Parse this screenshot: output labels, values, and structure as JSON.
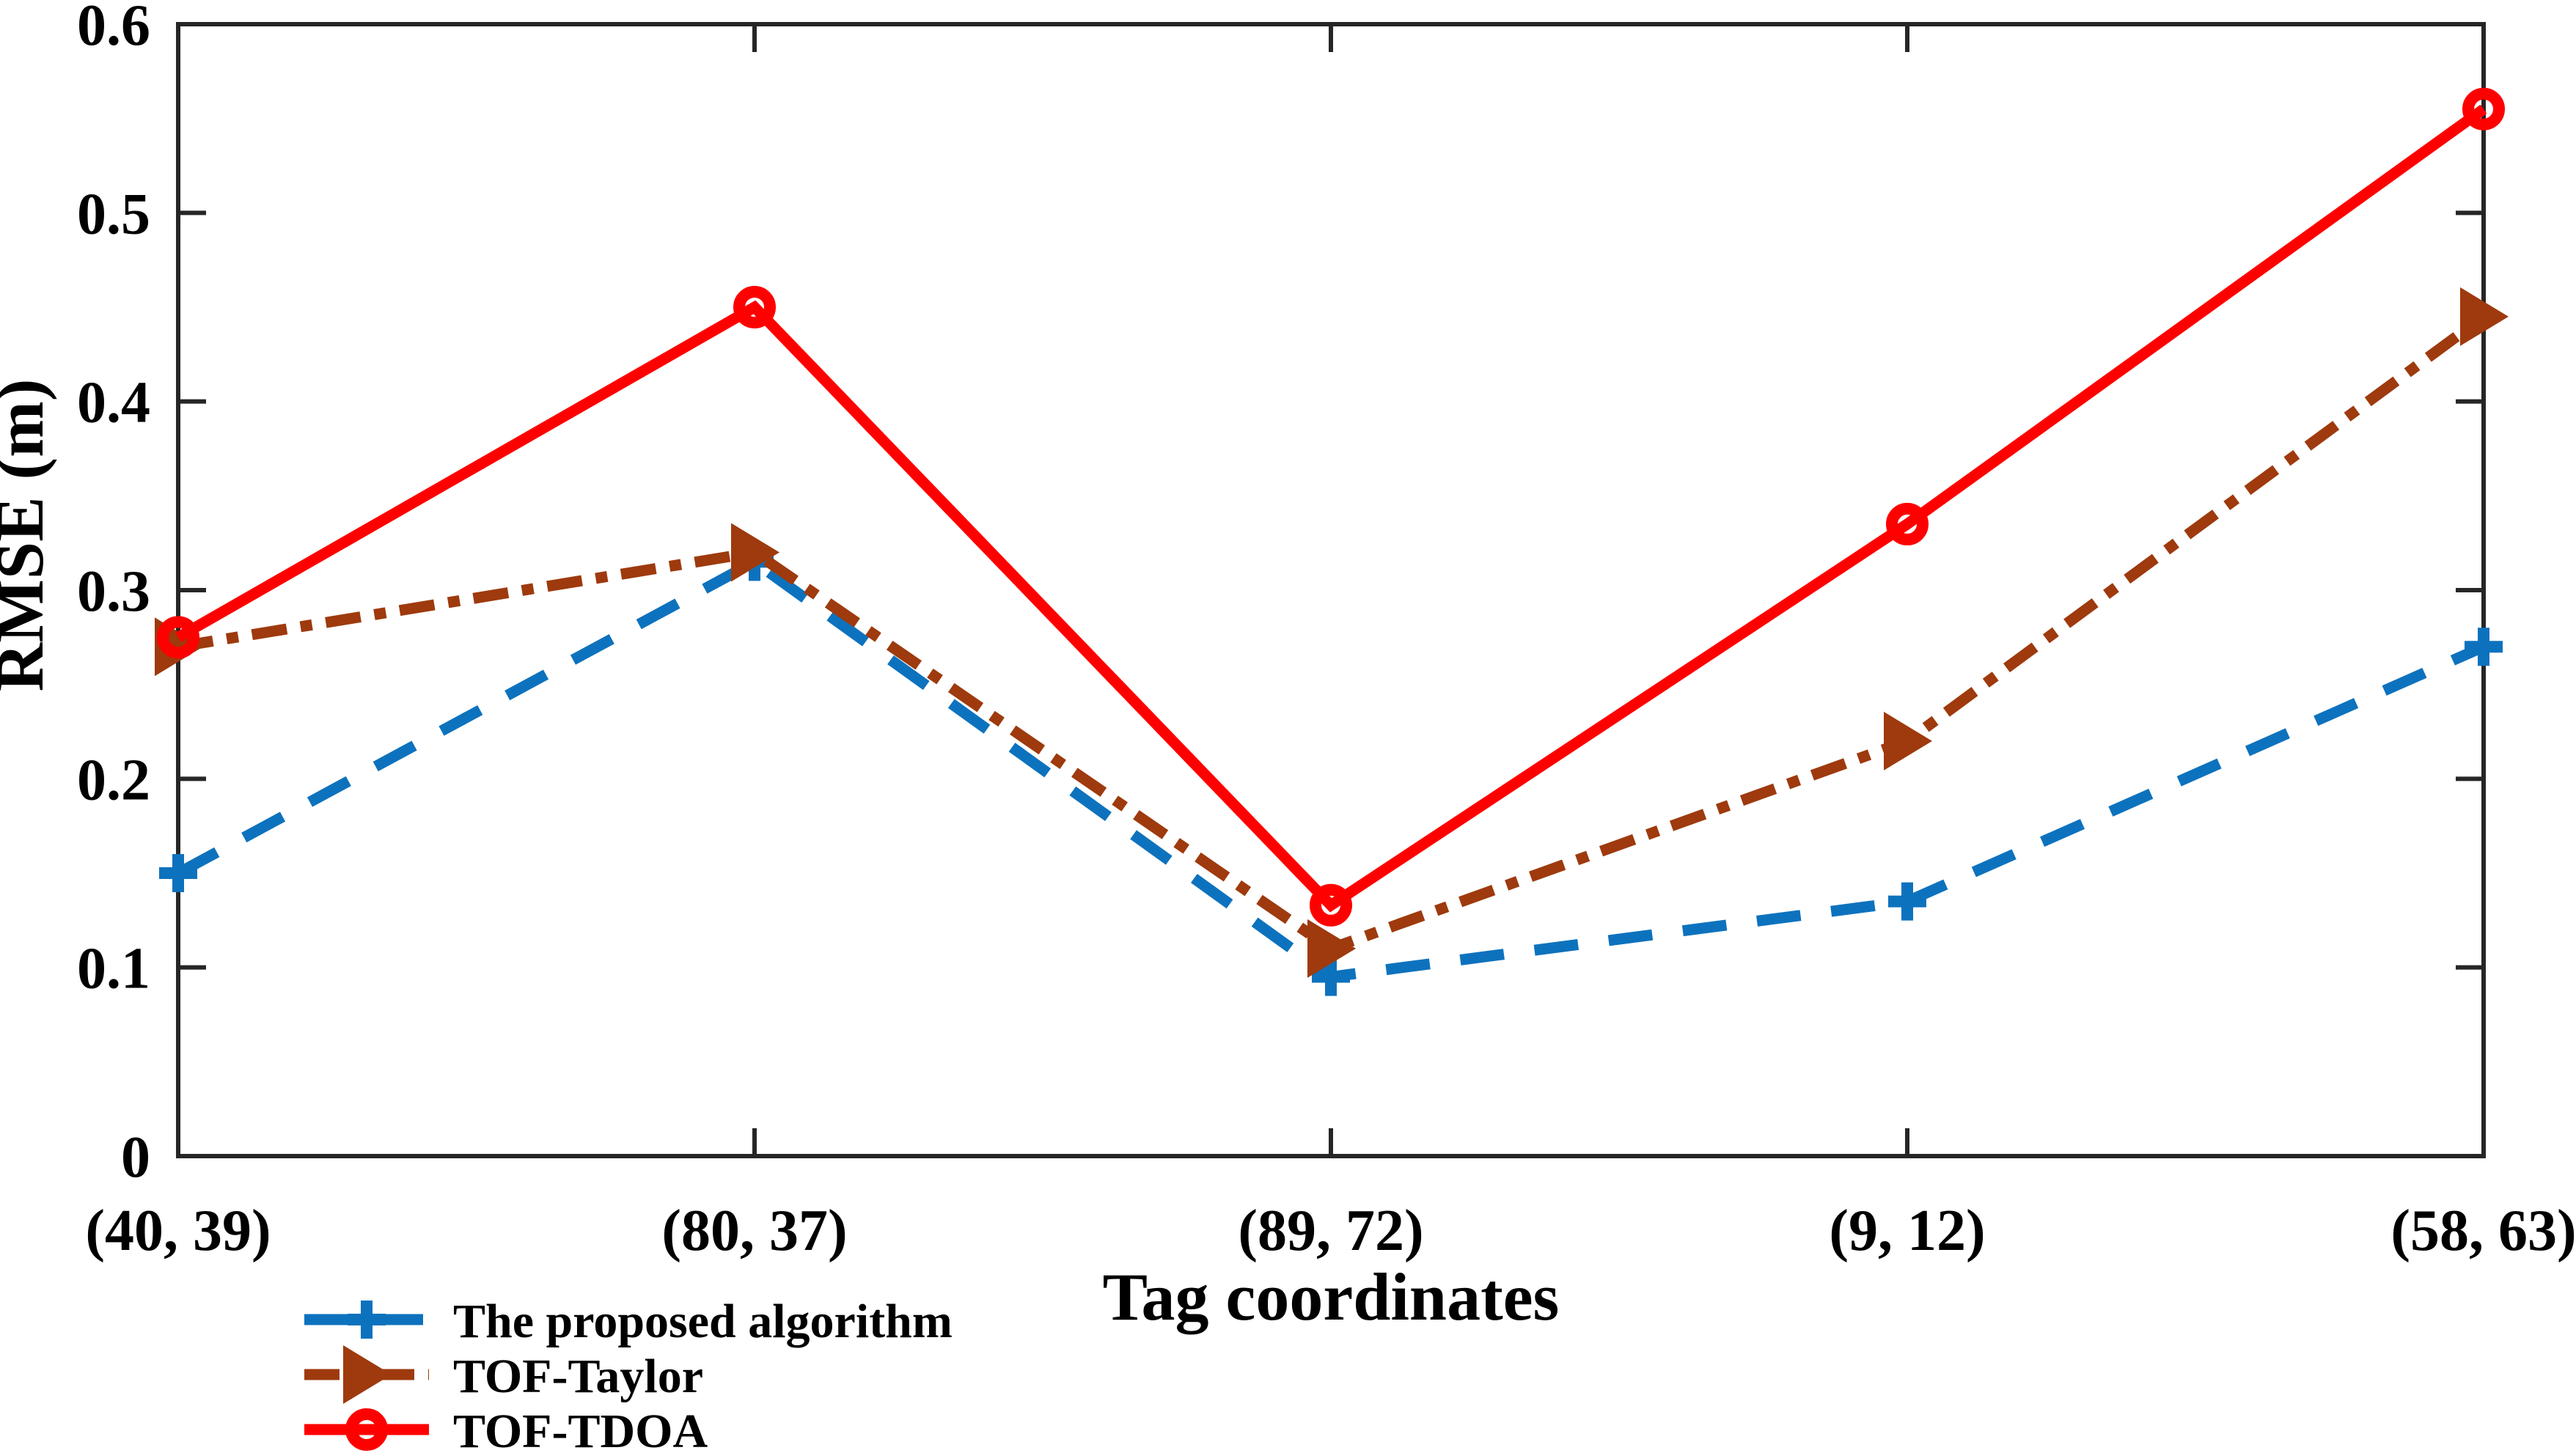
{
  "figure": {
    "background": "#ffffff",
    "axis_color": "#262626",
    "text_color": "#000000"
  },
  "chart_data": {
    "type": "line",
    "title": "",
    "xlabel": "Tag coordinates",
    "ylabel": "RMSE (m)",
    "categories": [
      "(40, 39)",
      "(80, 37)",
      "(89, 72)",
      "(9, 12)",
      "(58, 63)"
    ],
    "ylim": [
      0,
      0.6
    ],
    "yticks": [
      0,
      0.1,
      0.2,
      0.3,
      0.4,
      0.5,
      0.6
    ],
    "ytick_labels": [
      "0",
      "0.1",
      "0.2",
      "0.3",
      "0.4",
      "0.5",
      "0.6"
    ],
    "grid": false,
    "legend_position": "below-left",
    "series": [
      {
        "name": "The proposed algorithm",
        "color": "#0D72BD",
        "line_style": "dashed",
        "marker": "plus",
        "values": [
          0.15,
          0.315,
          0.095,
          0.135,
          0.27
        ]
      },
      {
        "name": "TOF-Taylor",
        "color": "#9E3A0D",
        "line_style": "dash-dot",
        "marker": "triangle-right",
        "values": [
          0.27,
          0.32,
          0.11,
          0.22,
          0.445
        ]
      },
      {
        "name": "TOF-TDOA",
        "color": "#FF0000",
        "line_style": "solid",
        "marker": "circle",
        "values": [
          0.275,
          0.45,
          0.133,
          0.335,
          0.555
        ]
      }
    ]
  }
}
